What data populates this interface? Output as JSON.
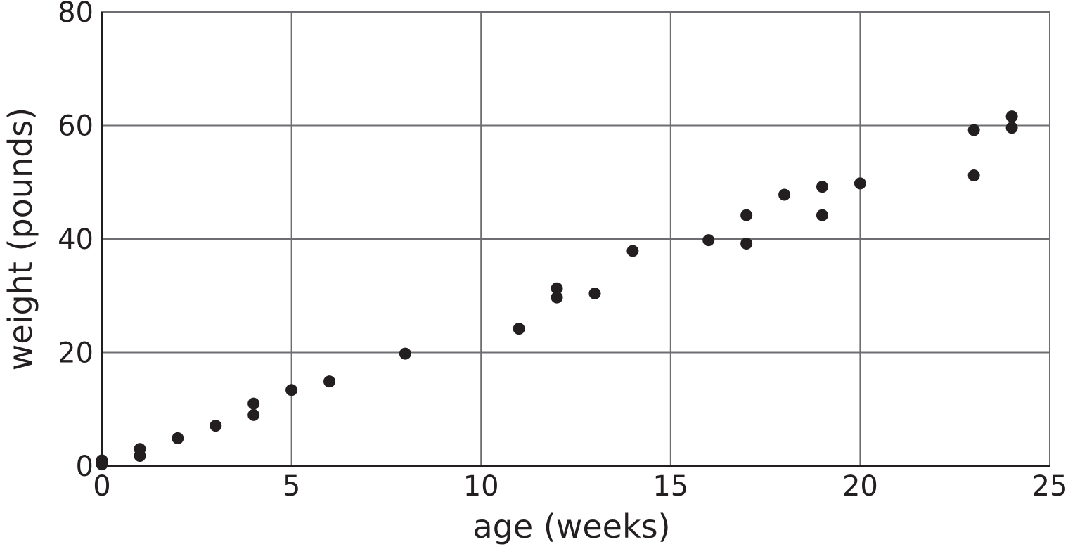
{
  "chart_data": {
    "type": "scatter",
    "title": "",
    "xlabel": "age (weeks)",
    "ylabel": "weight (pounds)",
    "xlim": [
      0,
      25
    ],
    "ylim": [
      0,
      80
    ],
    "x_ticks": [
      0,
      5,
      10,
      15,
      20,
      25
    ],
    "y_ticks": [
      0,
      20,
      40,
      60,
      80
    ],
    "x_tick_labels": [
      "0",
      "5",
      "10",
      "15",
      "20",
      "25"
    ],
    "y_tick_labels": [
      "0",
      "20",
      "40",
      "60",
      "80"
    ],
    "grid": true,
    "point_color": "#231f20",
    "grid_color": "#6d6e71",
    "points": [
      {
        "x": 0,
        "y": 0.3
      },
      {
        "x": 0,
        "y": 1.0
      },
      {
        "x": 1,
        "y": 1.8
      },
      {
        "x": 1,
        "y": 3.0
      },
      {
        "x": 2,
        "y": 4.9
      },
      {
        "x": 3,
        "y": 7.1
      },
      {
        "x": 4,
        "y": 9.0
      },
      {
        "x": 4,
        "y": 11.0
      },
      {
        "x": 5,
        "y": 13.4
      },
      {
        "x": 6,
        "y": 14.9
      },
      {
        "x": 8,
        "y": 19.8
      },
      {
        "x": 11,
        "y": 24.2
      },
      {
        "x": 12,
        "y": 29.7
      },
      {
        "x": 12,
        "y": 31.3
      },
      {
        "x": 13,
        "y": 30.4
      },
      {
        "x": 14,
        "y": 37.9
      },
      {
        "x": 16,
        "y": 39.8
      },
      {
        "x": 17,
        "y": 39.2
      },
      {
        "x": 17,
        "y": 44.2
      },
      {
        "x": 18,
        "y": 47.8
      },
      {
        "x": 19,
        "y": 44.2
      },
      {
        "x": 19,
        "y": 49.2
      },
      {
        "x": 20,
        "y": 49.8
      },
      {
        "x": 23,
        "y": 51.2
      },
      {
        "x": 23,
        "y": 59.2
      },
      {
        "x": 24,
        "y": 59.6
      },
      {
        "x": 24,
        "y": 61.6
      }
    ]
  }
}
